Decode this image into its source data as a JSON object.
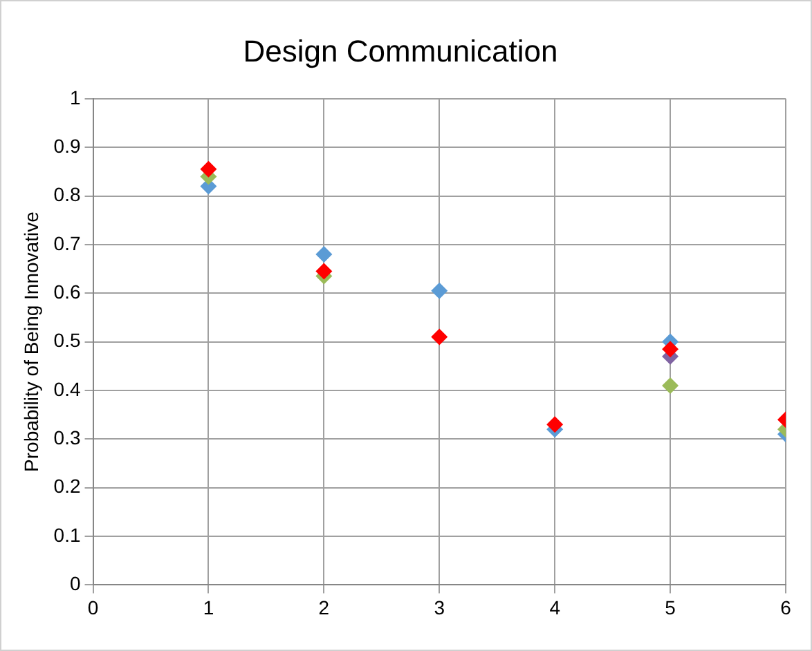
{
  "chart_data": {
    "type": "scatter",
    "title": "Design Communication",
    "ylabel": "Probability of Being Innovative",
    "x": [
      1,
      2,
      3,
      4,
      5,
      6
    ],
    "series": [
      {
        "color": "#5b9bd5",
        "values": [
          0.82,
          0.68,
          0.605,
          0.32,
          0.5,
          0.31
        ]
      },
      {
        "color": "#9bbb59",
        "values": [
          0.84,
          0.635,
          null,
          null,
          0.41,
          0.32
        ]
      },
      {
        "color": "#8064a2",
        "values": [
          null,
          null,
          null,
          null,
          0.47,
          null
        ]
      },
      {
        "color": "#ff0000",
        "values": [
          0.855,
          0.645,
          0.51,
          0.33,
          0.485,
          0.34
        ]
      }
    ],
    "xlim": [
      0,
      6
    ],
    "xticks": [
      0,
      1,
      2,
      3,
      4,
      5,
      6
    ],
    "ylim": [
      0,
      1
    ],
    "yticks": [
      0,
      0.1,
      0.2,
      0.3,
      0.4,
      0.5,
      0.6,
      0.7,
      0.8,
      0.9,
      1
    ],
    "grid": true,
    "legend": false,
    "marker": "diamond"
  }
}
